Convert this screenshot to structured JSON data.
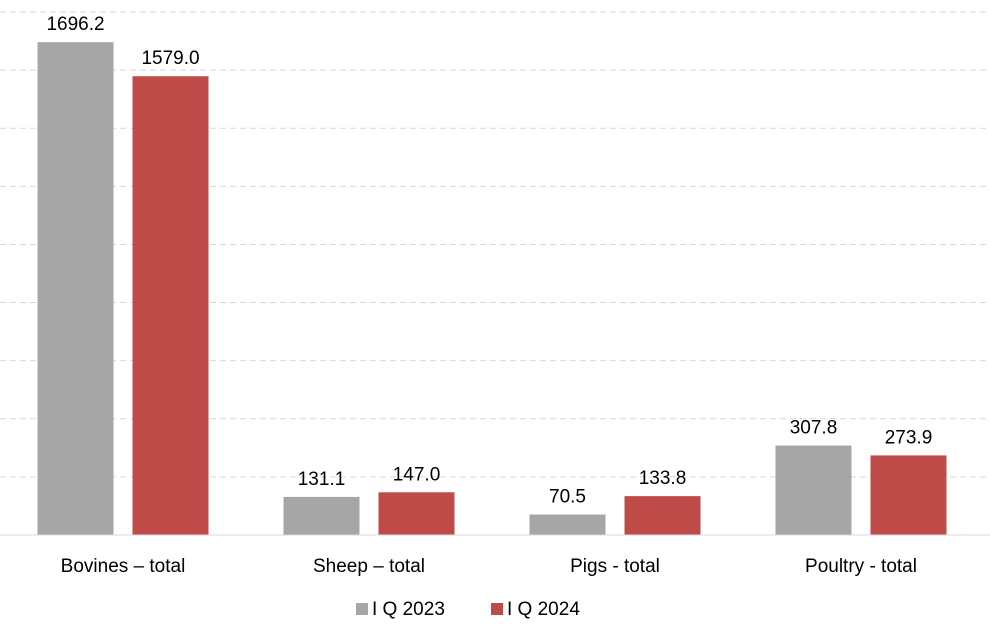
{
  "chart_data": {
    "type": "bar",
    "categories": [
      "Bovines – total",
      "Sheep – total",
      "Pigs - total",
      "Poultry - total"
    ],
    "series": [
      {
        "name": "I Q 2023",
        "color": "#a6a6a6",
        "values": [
          1696.2,
          131.1,
          70.5,
          307.8
        ],
        "labels": [
          "1696.2",
          "131.1",
          "70.5",
          "307.8"
        ]
      },
      {
        "name": "I Q 2024",
        "color": "#be4b48",
        "values": [
          1579.0,
          147.0,
          133.8,
          273.9
        ],
        "labels": [
          "1579.0",
          "147.0",
          "133.8",
          "273.9"
        ]
      }
    ],
    "ylim": [
      0,
      1800
    ],
    "grid": true,
    "legend": "bottom"
  }
}
